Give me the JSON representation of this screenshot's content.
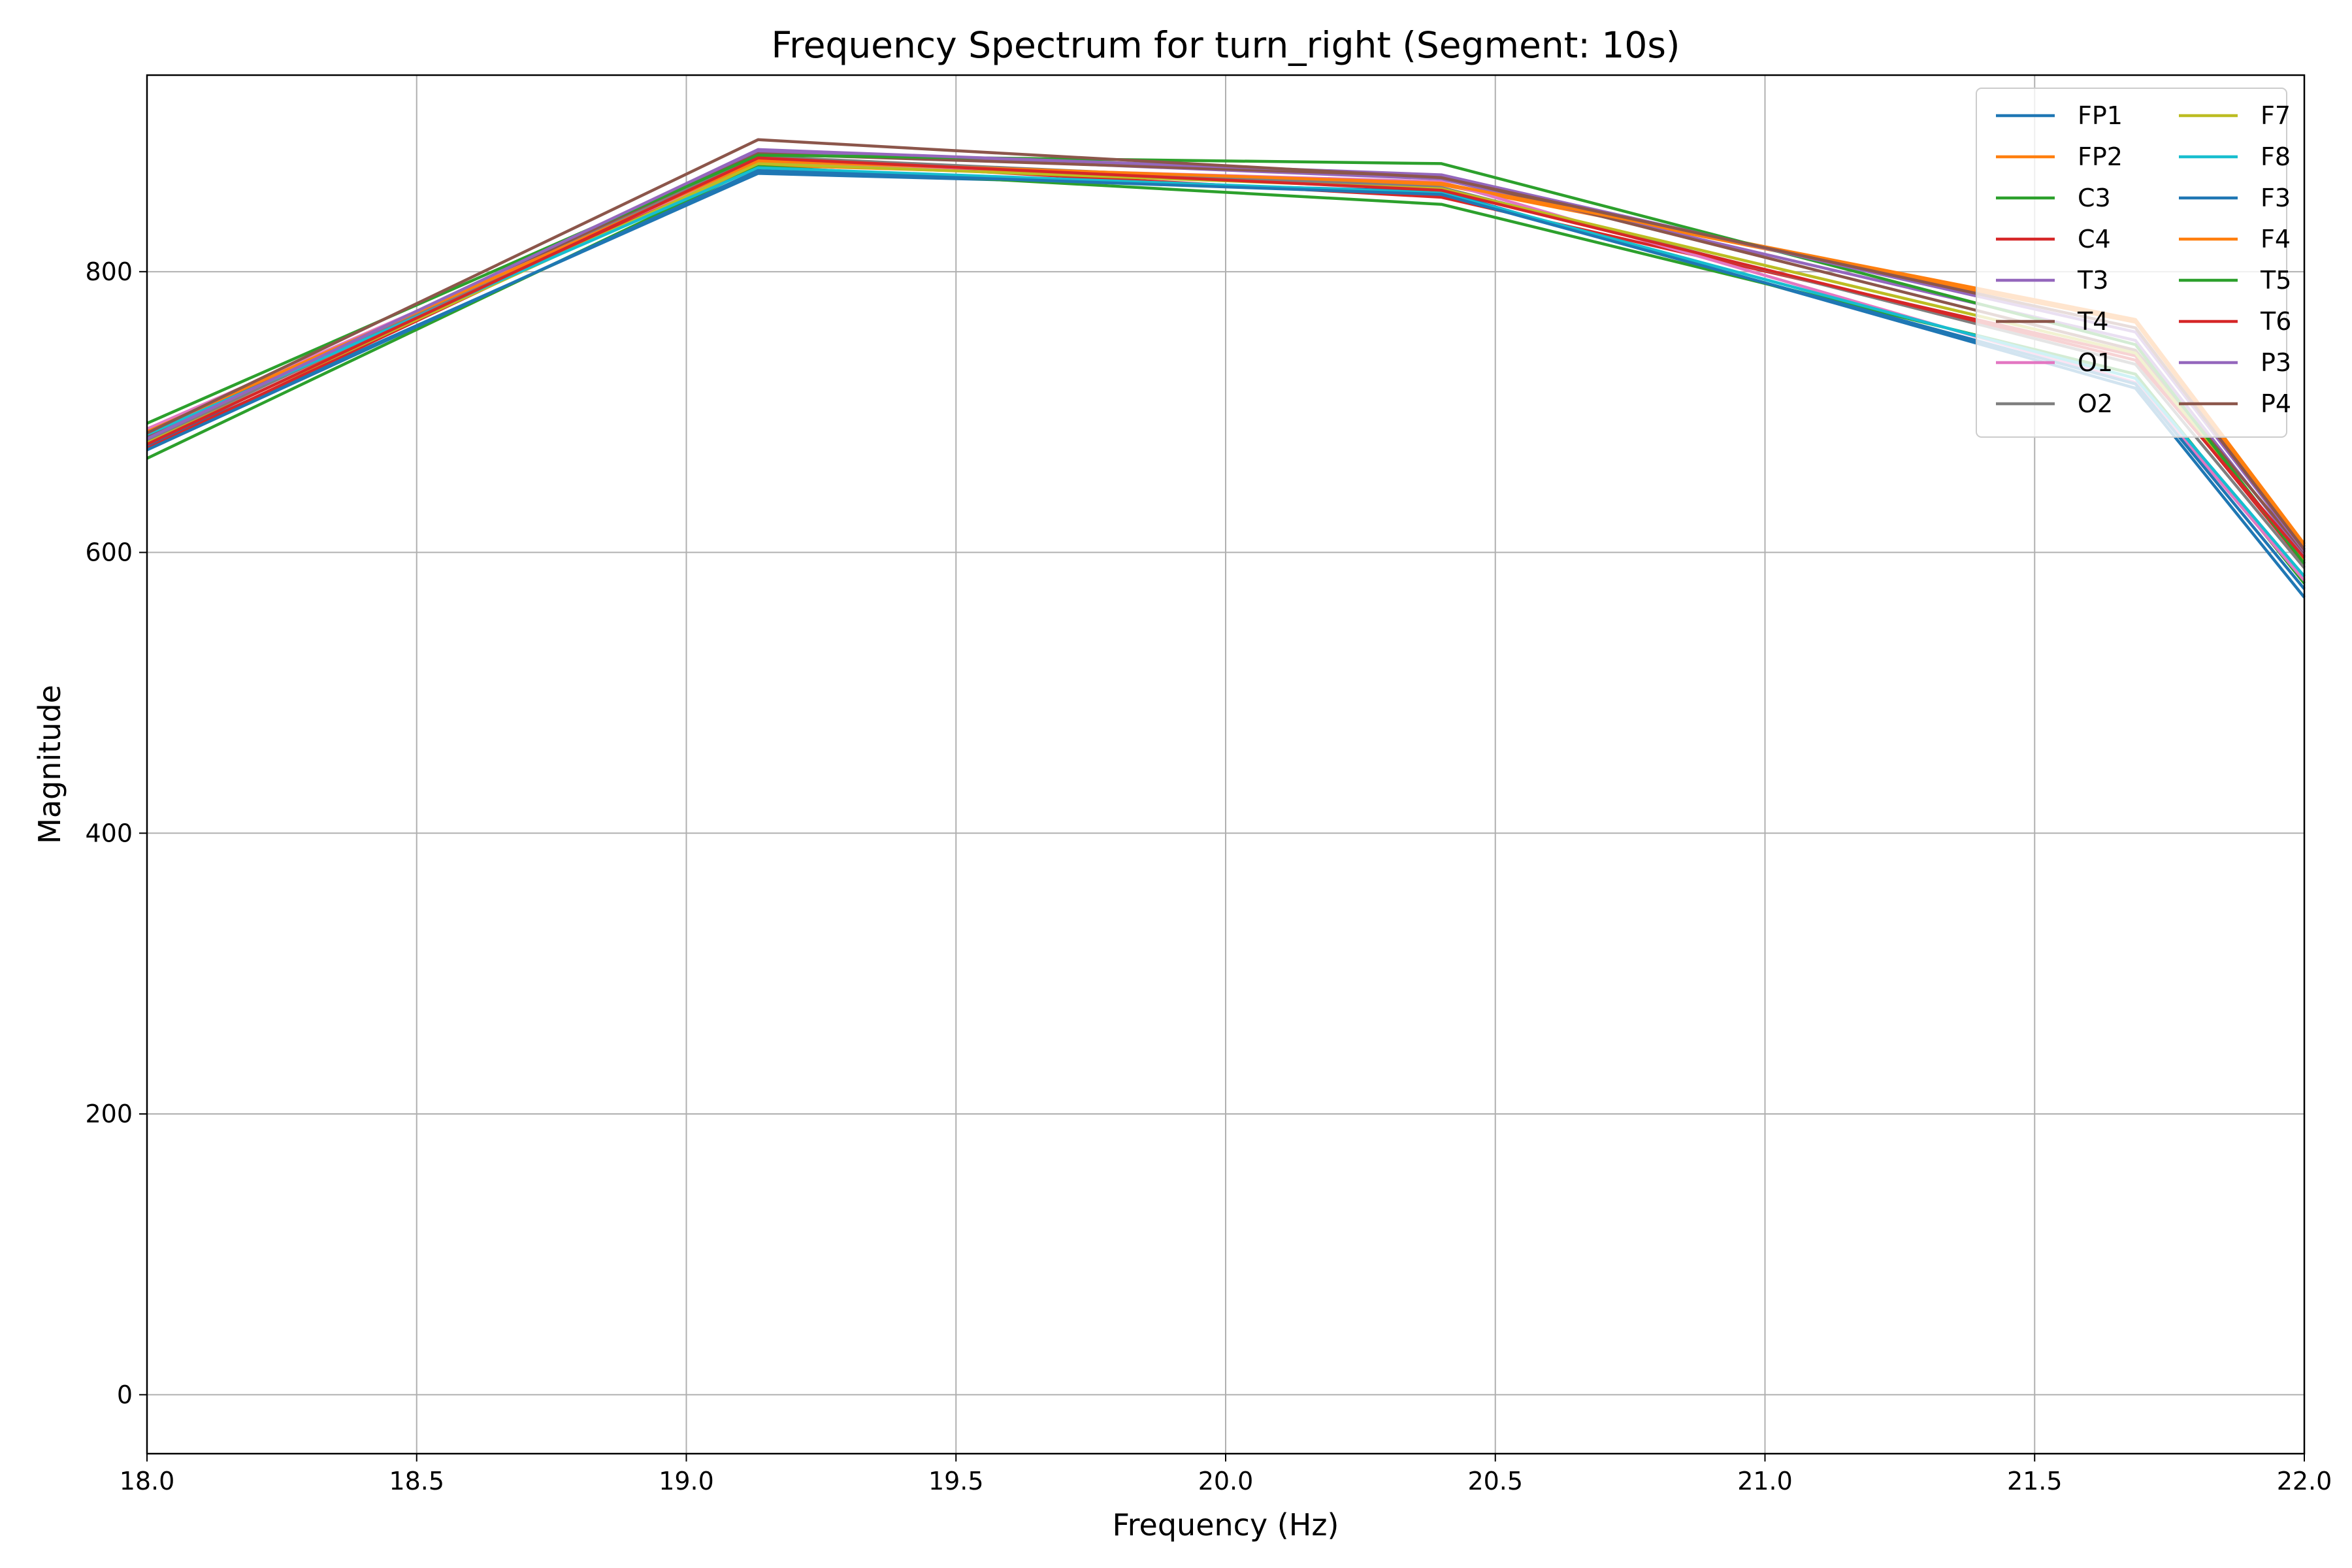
{
  "chart_data": {
    "type": "line",
    "title": "Frequency Spectrum for turn_right (Segment: 10s)",
    "xlabel": "Frequency (Hz)",
    "ylabel": "Magnitude",
    "xlim": [
      18.0,
      22.0
    ],
    "ylim": [
      -42,
      940
    ],
    "grid": true,
    "legend_position": "top-right",
    "legend_columns": 2,
    "x": [
      18.0,
      19.133,
      20.4,
      21.687,
      22.0
    ],
    "xticks": [
      18.0,
      18.5,
      19.0,
      19.5,
      20.0,
      20.5,
      21.0,
      21.5,
      22.0
    ],
    "xtick_labels": [
      "18.0",
      "18.5",
      "19.0",
      "19.5",
      "20.0",
      "20.5",
      "21.0",
      "21.5",
      "22.0"
    ],
    "yticks": [
      0,
      200,
      400,
      600,
      800
    ],
    "ytick_labels": [
      "0",
      "200",
      "400",
      "600",
      "800"
    ],
    "series": [
      {
        "name": "FP1",
        "color": "#1f77b4",
        "values": [
          676,
          870,
          857,
          717,
          568
        ]
      },
      {
        "name": "FP2",
        "color": "#ff7f0e",
        "values": [
          682,
          876,
          862,
          764,
          604
        ]
      },
      {
        "name": "C3",
        "color": "#2ca02c",
        "values": [
          667,
          875,
          848,
          727,
          578
        ]
      },
      {
        "name": "C4",
        "color": "#d62728",
        "values": [
          674,
          880,
          853,
          740,
          592
        ]
      },
      {
        "name": "T3",
        "color": "#9467bd",
        "values": [
          679,
          886,
          866,
          751,
          597
        ]
      },
      {
        "name": "T4",
        "color": "#8c564b",
        "values": [
          683,
          884,
          868,
          744,
          600
        ]
      },
      {
        "name": "O1",
        "color": "#e377c2",
        "values": [
          688,
          878,
          864,
          721,
          580
        ]
      },
      {
        "name": "O2",
        "color": "#7f7f7f",
        "values": [
          680,
          882,
          860,
          734,
          589
        ]
      },
      {
        "name": "F7",
        "color": "#bcbd22",
        "values": [
          678,
          877,
          859,
          742,
          594
        ]
      },
      {
        "name": "F8",
        "color": "#17becf",
        "values": [
          684,
          874,
          856,
          724,
          583
        ]
      },
      {
        "name": "F3",
        "color": "#1f77b4",
        "values": [
          673,
          872,
          855,
          720,
          574
        ]
      },
      {
        "name": "F4",
        "color": "#ff7f0e",
        "values": [
          686,
          879,
          863,
          766,
          606
        ]
      },
      {
        "name": "T5",
        "color": "#2ca02c",
        "values": [
          692,
          883,
          877,
          748,
          592
        ]
      },
      {
        "name": "T6",
        "color": "#d62728",
        "values": [
          677,
          881,
          858,
          737,
          596
        ]
      },
      {
        "name": "P3",
        "color": "#9467bd",
        "values": [
          681,
          887,
          869,
          757,
          601
        ]
      },
      {
        "name": "P4",
        "color": "#8c564b",
        "values": [
          685,
          894,
          867,
          760,
          602
        ]
      }
    ]
  }
}
